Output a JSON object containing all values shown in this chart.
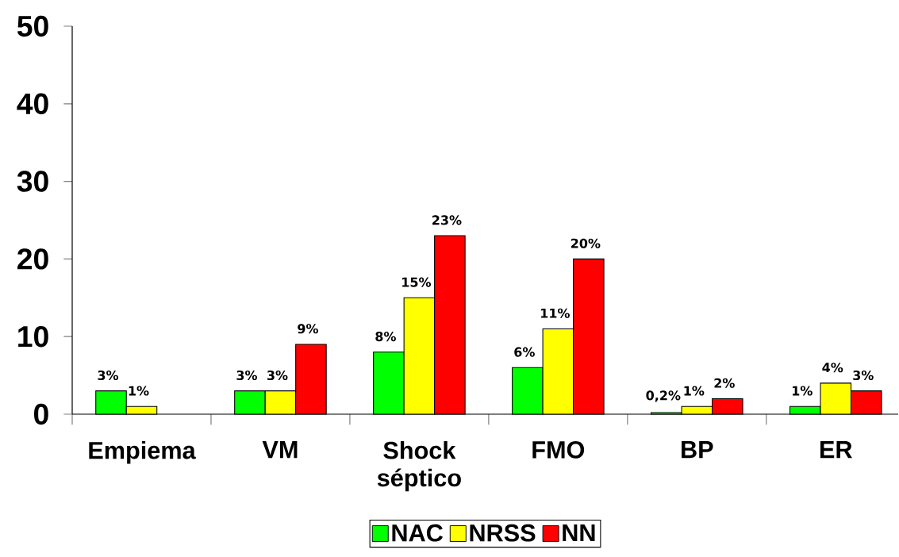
{
  "chart_data": {
    "type": "bar",
    "categories": [
      "Empiema",
      "VM",
      "Shock séptico",
      "FMO",
      "BP",
      "ER"
    ],
    "series": [
      {
        "name": "NAC",
        "color": "#00ff00",
        "values": [
          3,
          3,
          8,
          6,
          0.2,
          1
        ],
        "value_labels": [
          "3%",
          "3%",
          "8%",
          "6%",
          "0,2%",
          "1%"
        ]
      },
      {
        "name": "NRSS",
        "color": "#ffff00",
        "values": [
          1,
          3,
          15,
          11,
          1,
          4
        ],
        "value_labels": [
          "1%",
          "3%",
          "15%",
          "11%",
          "1%",
          "4%"
        ]
      },
      {
        "name": "NN",
        "color": "#ff0000",
        "values": [
          null,
          9,
          23,
          20,
          2,
          3
        ],
        "value_labels": [
          null,
          "9%",
          "23%",
          "20%",
          "2%",
          "3%"
        ]
      }
    ],
    "ylim": [
      0,
      50
    ],
    "yticks": [
      0,
      10,
      20,
      30,
      40,
      50
    ],
    "legend": "bottom"
  }
}
